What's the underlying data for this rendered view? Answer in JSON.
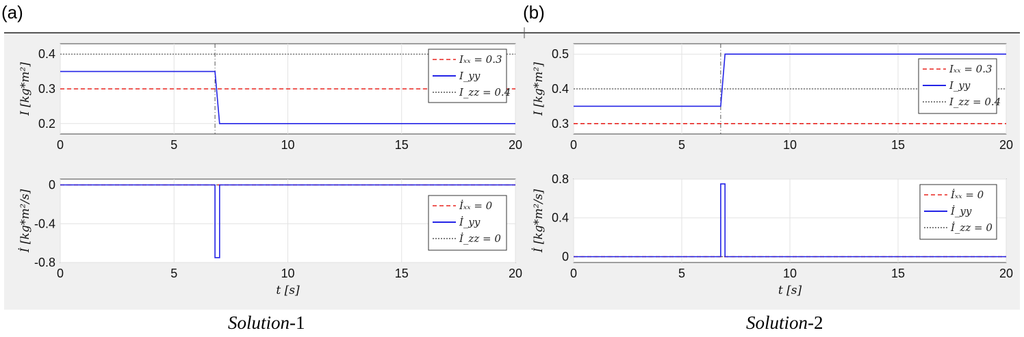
{
  "panels": [
    {
      "letter": "(a)",
      "caption_italic": "Solution",
      "caption_suffix": "-1"
    },
    {
      "letter": "(b)",
      "caption_italic": "Solution",
      "caption_suffix": "-2"
    }
  ],
  "colors": {
    "red": "#e8231f",
    "blue": "#2323e6",
    "black": "#555555",
    "background": "#f0f0f0"
  },
  "chart_data": [
    {
      "panel": "(a)",
      "type": "line",
      "xlim": [
        0,
        20
      ],
      "ylim": [
        0.17,
        0.43
      ],
      "xticks": [
        0,
        5,
        10,
        15,
        20
      ],
      "yticks": [
        0.2,
        0.3,
        0.4
      ],
      "ytick_labels": [
        "0.2",
        "0.3",
        "0.4"
      ],
      "ylabel": "I [kg*m²]",
      "xlabel": "",
      "grid": true,
      "legend_position": "top-right",
      "switch_time": 6.8,
      "series": [
        {
          "name": "Iₓₓ = 0.3",
          "color": "red",
          "style": "dashed",
          "x": [
            0,
            20
          ],
          "y": [
            0.3,
            0.3
          ]
        },
        {
          "name": "I_yy",
          "color": "blue",
          "style": "solid",
          "x": [
            0,
            6.8,
            7.0,
            20
          ],
          "y": [
            0.35,
            0.35,
            0.2,
            0.2
          ]
        },
        {
          "name": "I_zz = 0.4",
          "color": "black",
          "style": "dotted",
          "x": [
            0,
            20
          ],
          "y": [
            0.4,
            0.4
          ]
        }
      ]
    },
    {
      "panel": "(b)",
      "type": "line",
      "xlim": [
        0,
        20
      ],
      "ylim": [
        0.27,
        0.53
      ],
      "xticks": [
        0,
        5,
        10,
        15,
        20
      ],
      "yticks": [
        0.3,
        0.4,
        0.5
      ],
      "ytick_labels": [
        "0.3",
        "0.4",
        "0.5"
      ],
      "ylabel": "I [kg*m²]",
      "xlabel": "",
      "grid": true,
      "legend_position": "top-right",
      "switch_time": 6.8,
      "series": [
        {
          "name": "Iₓₓ = 0.3",
          "color": "red",
          "style": "dashed",
          "x": [
            0,
            20
          ],
          "y": [
            0.3,
            0.3
          ]
        },
        {
          "name": "I_yy",
          "color": "blue",
          "style": "solid",
          "x": [
            0,
            6.8,
            7.0,
            20
          ],
          "y": [
            0.35,
            0.35,
            0.5,
            0.5
          ]
        },
        {
          "name": "I_zz = 0.4",
          "color": "black",
          "style": "dotted",
          "x": [
            0,
            20
          ],
          "y": [
            0.4,
            0.4
          ]
        }
      ]
    },
    {
      "panel": "(a)",
      "type": "line",
      "xlim": [
        0,
        20
      ],
      "ylim": [
        -0.8,
        0.06
      ],
      "xticks": [
        0,
        5,
        10,
        15,
        20
      ],
      "yticks": [
        0,
        -0.4,
        -0.8
      ],
      "ytick_labels": [
        "0",
        "-0.4",
        "-0.8"
      ],
      "ylabel": "İ [kg*m²/s]",
      "xlabel": "t [s]",
      "grid": true,
      "legend_position": "bottom-right",
      "series": [
        {
          "name": "İₓₓ = 0",
          "color": "red",
          "style": "dashed",
          "x": [
            0,
            20
          ],
          "y": [
            0,
            0
          ]
        },
        {
          "name": "İ_yy",
          "color": "blue",
          "style": "solid",
          "x": [
            0,
            6.8,
            6.8,
            7.0,
            7.0,
            20
          ],
          "y": [
            0,
            0,
            -0.75,
            -0.75,
            0,
            0
          ]
        },
        {
          "name": "İ_zz = 0",
          "color": "black",
          "style": "dotted",
          "x": [
            0,
            20
          ],
          "y": [
            0,
            0
          ]
        }
      ]
    },
    {
      "panel": "(b)",
      "type": "line",
      "xlim": [
        0,
        20
      ],
      "ylim": [
        -0.06,
        0.8
      ],
      "xticks": [
        0,
        5,
        10,
        15,
        20
      ],
      "yticks": [
        0,
        0.4,
        0.8
      ],
      "ytick_labels": [
        "0",
        "0.4",
        "0.8"
      ],
      "ylabel": "İ [kg*m²/s]",
      "xlabel": "t [s]",
      "grid": true,
      "legend_position": "top-right",
      "series": [
        {
          "name": "İₓₓ = 0",
          "color": "red",
          "style": "dashed",
          "x": [
            0,
            20
          ],
          "y": [
            0,
            0
          ]
        },
        {
          "name": "İ_yy",
          "color": "blue",
          "style": "solid",
          "x": [
            0,
            6.8,
            6.8,
            7.0,
            7.0,
            20
          ],
          "y": [
            0,
            0,
            0.75,
            0.75,
            0,
            0
          ]
        },
        {
          "name": "İ_zz = 0",
          "color": "black",
          "style": "dotted",
          "x": [
            0,
            20
          ],
          "y": [
            0,
            0
          ]
        }
      ]
    }
  ]
}
